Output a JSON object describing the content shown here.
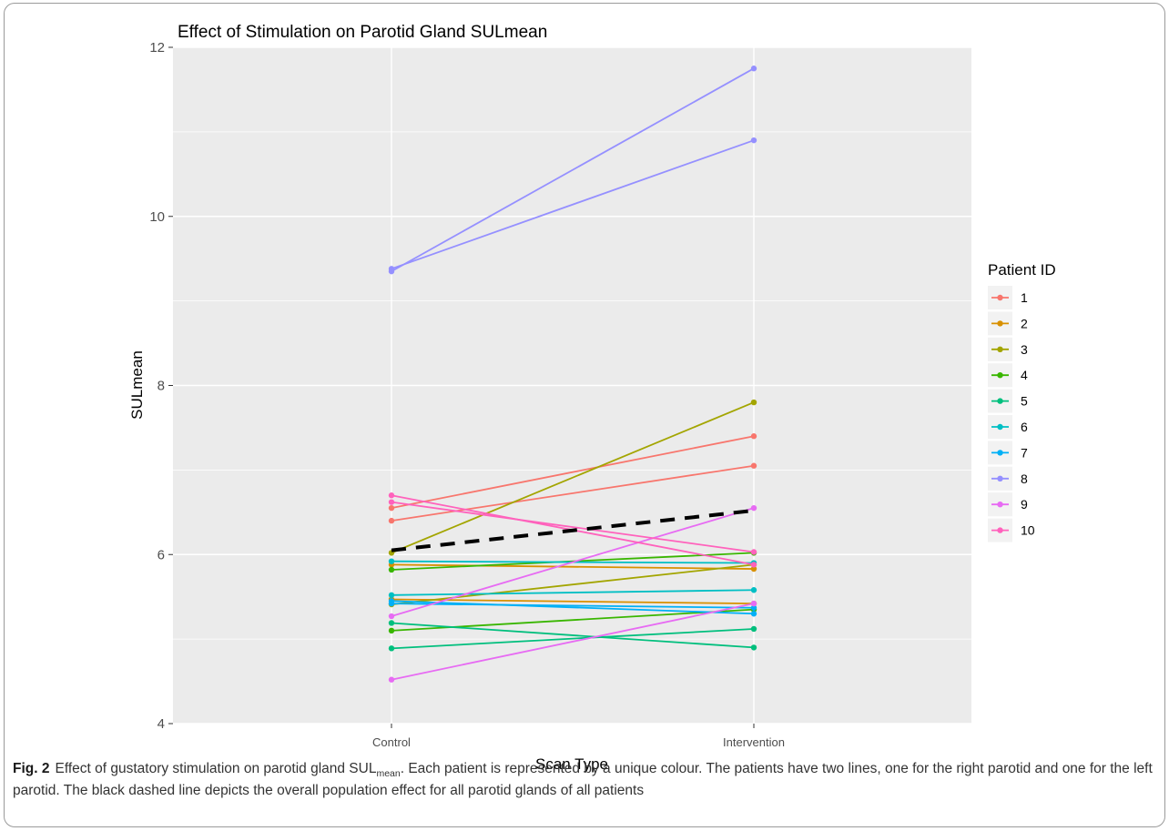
{
  "chart_data": {
    "type": "line",
    "title": "Effect of Stimulation on Parotid Gland SULmean",
    "xlabel": "Scan Type",
    "ylabel": "SULmean",
    "categories": [
      "Control",
      "Intervention"
    ],
    "ylim": [
      4,
      12
    ],
    "yticks": [
      "4",
      "6",
      "8",
      "10",
      "12"
    ],
    "grid": true,
    "legend": {
      "title": "Patient ID",
      "position": "right"
    },
    "series": [
      {
        "name": "1",
        "color": "#F8766D",
        "lines": [
          [
            6.4,
            7.05
          ],
          [
            6.55,
            7.4
          ]
        ]
      },
      {
        "name": "2",
        "color": "#D89000",
        "lines": [
          [
            5.88,
            5.83
          ],
          [
            5.47,
            5.42
          ]
        ]
      },
      {
        "name": "3",
        "color": "#A3A500",
        "lines": [
          [
            6.02,
            7.8
          ],
          [
            5.41,
            5.88
          ]
        ]
      },
      {
        "name": "4",
        "color": "#39B600",
        "lines": [
          [
            5.82,
            6.02
          ],
          [
            5.1,
            5.35
          ]
        ]
      },
      {
        "name": "5",
        "color": "#00BF7D",
        "lines": [
          [
            5.19,
            4.9
          ],
          [
            4.89,
            5.12
          ]
        ]
      },
      {
        "name": "6",
        "color": "#00BFC4",
        "lines": [
          [
            5.52,
            5.58
          ],
          [
            5.92,
            5.9
          ]
        ]
      },
      {
        "name": "7",
        "color": "#00B0F6",
        "lines": [
          [
            5.45,
            5.3
          ],
          [
            5.42,
            5.37
          ]
        ]
      },
      {
        "name": "8",
        "color": "#9590FF",
        "lines": [
          [
            9.35,
            11.75
          ],
          [
            9.38,
            10.9
          ]
        ]
      },
      {
        "name": "9",
        "color": "#E76BF3",
        "lines": [
          [
            4.52,
            5.42
          ],
          [
            5.27,
            6.55
          ]
        ]
      },
      {
        "name": "10",
        "color": "#FF62BC",
        "lines": [
          [
            6.7,
            5.88
          ],
          [
            6.62,
            6.03
          ]
        ]
      }
    ],
    "overall_effect": {
      "values": [
        6.05,
        6.52
      ],
      "style": "dashed",
      "color": "#000000"
    }
  },
  "caption": {
    "label": "Fig. 2",
    "text_start": "Effect of gustatory stimulation on parotid gland SUL",
    "subscript": "mean",
    "text_end": ". Each patient is represented by a unique colour. The patients have two lines, one for the right parotid and one for the left parotid. The black dashed line depicts the overall population effect for all parotid glands of all patients"
  }
}
